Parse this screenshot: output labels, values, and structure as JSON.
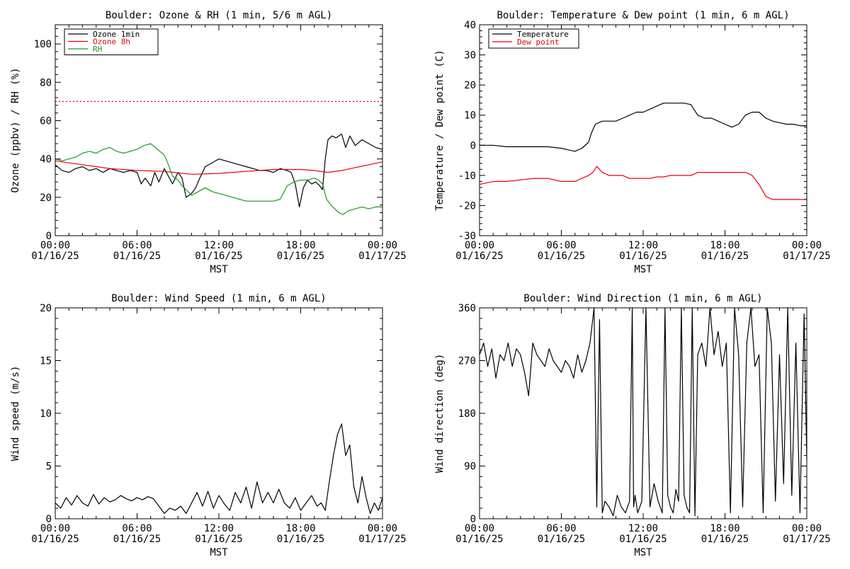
{
  "chart_data": [
    {
      "type": "line",
      "title": "Boulder: Ozone & RH (1 min, 5/6 m AGL)",
      "xlabel": "MST",
      "ylabel": "Ozone (ppbv) / RH (%)",
      "xlim": [
        0,
        24
      ],
      "ylim": [
        0,
        110
      ],
      "yticks": [
        "0",
        "20",
        "40",
        "60",
        "80",
        "100"
      ],
      "ytick_values": [
        0,
        20,
        40,
        60,
        80,
        100
      ],
      "xticks": [
        {
          "time": "00:00",
          "date": "01/16/25"
        },
        {
          "time": "06:00",
          "date": "01/16/25"
        },
        {
          "time": "12:00",
          "date": "01/16/25"
        },
        {
          "time": "18:00",
          "date": "01/16/25"
        },
        {
          "time": "00:00",
          "date": "01/17/25"
        }
      ],
      "xtick_values": [
        0,
        6,
        12,
        18,
        24
      ],
      "grid": false,
      "legend_position": "top-left",
      "reference_lines": [
        {
          "y": 70,
          "color": "#e8000b",
          "style": "dotted"
        }
      ],
      "series": [
        {
          "name": "Ozone 1min",
          "color": "#000000",
          "x": [
            0,
            0.5,
            1,
            1.5,
            2,
            2.5,
            3,
            3.5,
            4,
            4.5,
            5,
            5.5,
            6,
            6.3,
            6.6,
            7,
            7.3,
            7.6,
            8,
            8.3,
            8.6,
            9,
            9.3,
            9.6,
            10,
            10.3,
            10.6,
            11,
            11.5,
            12,
            12.5,
            13,
            13.5,
            14,
            14.5,
            15,
            15.5,
            16,
            16.5,
            17,
            17.3,
            17.6,
            17.9,
            18.2,
            18.5,
            18.8,
            19.1,
            19.4,
            19.6,
            19.8,
            20,
            20.3,
            20.6,
            21,
            21.3,
            21.6,
            22,
            22.5,
            23,
            23.5,
            24
          ],
          "values": [
            37,
            34,
            33,
            35,
            36,
            34,
            35,
            33,
            35,
            34,
            33,
            34,
            33,
            27,
            30,
            26,
            33,
            28,
            35,
            31,
            27,
            33,
            30,
            20,
            22,
            25,
            30,
            36,
            38,
            40,
            39,
            38,
            37,
            36,
            35,
            34,
            34,
            33,
            35,
            34,
            33,
            27,
            15,
            25,
            29,
            27,
            28,
            26,
            24,
            40,
            50,
            52,
            51,
            53,
            46,
            52,
            47,
            50,
            48,
            46,
            45
          ]
        },
        {
          "name": "Ozone 8h",
          "color": "#e8000b",
          "x": [
            0,
            2,
            4,
            6,
            8,
            10,
            12,
            14,
            16,
            18,
            19,
            20,
            21,
            22,
            23,
            24
          ],
          "values": [
            39,
            37,
            35,
            34,
            33.5,
            32,
            32.5,
            33.5,
            34.5,
            34.5,
            34,
            33,
            34,
            35.5,
            37,
            38.5
          ]
        },
        {
          "name": "RH",
          "color": "#1a9a1a",
          "x": [
            0,
            0.5,
            1,
            1.5,
            2,
            2.5,
            3,
            3.5,
            4,
            4.5,
            5,
            5.5,
            6,
            6.5,
            7,
            7.5,
            8,
            8.3,
            8.6,
            9,
            9.3,
            9.6,
            10,
            10.5,
            11,
            11.5,
            12,
            12.5,
            13,
            13.5,
            14,
            14.5,
            15,
            15.5,
            16,
            16.5,
            17,
            17.5,
            18,
            18.5,
            19,
            19.3,
            19.6,
            19.9,
            20.2,
            20.5,
            20.8,
            21.1,
            21.5,
            22,
            22.5,
            23,
            23.5,
            24
          ],
          "values": [
            40,
            39,
            40,
            41,
            43,
            44,
            43,
            45,
            46,
            44,
            43,
            44,
            45,
            47,
            48,
            45,
            42,
            37,
            31,
            29,
            26,
            24,
            21,
            23,
            25,
            23,
            22,
            21,
            20,
            19,
            18,
            18,
            18,
            18,
            18,
            19,
            26,
            28,
            29,
            29,
            30,
            29,
            27,
            19,
            16,
            14,
            12,
            11,
            13,
            14,
            15,
            14,
            15,
            15
          ]
        }
      ]
    },
    {
      "type": "line",
      "title": "Boulder: Temperature & Dew point (1 min, 6 m AGL)",
      "xlabel": "MST",
      "ylabel": "Temperature / Dew point (C)",
      "xlim": [
        0,
        24
      ],
      "ylim": [
        -30,
        40
      ],
      "yticks": [
        "-30",
        "-20",
        "-10",
        "0",
        "10",
        "20",
        "30",
        "40"
      ],
      "ytick_values": [
        -30,
        -20,
        -10,
        0,
        10,
        20,
        30,
        40
      ],
      "xticks": [
        {
          "time": "00:00",
          "date": "01/16/25"
        },
        {
          "time": "06:00",
          "date": "01/16/25"
        },
        {
          "time": "12:00",
          "date": "01/16/25"
        },
        {
          "time": "18:00",
          "date": "01/16/25"
        },
        {
          "time": "00:00",
          "date": "01/17/25"
        }
      ],
      "xtick_values": [
        0,
        6,
        12,
        18,
        24
      ],
      "grid": false,
      "legend_position": "top-left",
      "reference_lines": [],
      "series": [
        {
          "name": "Temperature",
          "color": "#000000",
          "x": [
            0,
            1,
            2,
            3,
            4,
            5,
            6,
            6.5,
            7,
            7.5,
            8,
            8.2,
            8.5,
            9,
            9.5,
            10,
            10.5,
            11,
            11.5,
            12,
            12.5,
            13,
            13.5,
            14,
            14.5,
            15,
            15.5,
            16,
            16.5,
            17,
            17.5,
            18,
            18.5,
            19,
            19.5,
            20,
            20.5,
            21,
            21.5,
            22,
            22.5,
            23,
            23.5,
            24
          ],
          "values": [
            0,
            0,
            -0.5,
            -0.5,
            -0.5,
            -0.5,
            -1,
            -1.5,
            -2,
            -1,
            1,
            4,
            7,
            8,
            8,
            8,
            9,
            10,
            11,
            11,
            12,
            13,
            14,
            14,
            14,
            14,
            13.5,
            10,
            9,
            9,
            8,
            7,
            6,
            7,
            10,
            11,
            11,
            9,
            8,
            7.5,
            7,
            7,
            6.5,
            6.5
          ]
        },
        {
          "name": "Dew point",
          "color": "#e8000b",
          "x": [
            0,
            1,
            2,
            3,
            4,
            5,
            6,
            6.5,
            7,
            7.5,
            8,
            8.3,
            8.6,
            9,
            9.5,
            10,
            10.5,
            11,
            11.5,
            12,
            12.5,
            13,
            13.5,
            14,
            14.5,
            15,
            15.5,
            16,
            16.5,
            17,
            17.5,
            18,
            18.5,
            19,
            19.5,
            20,
            20.5,
            21,
            21.5,
            22,
            22.5,
            23,
            23.5,
            24
          ],
          "values": [
            -13,
            -12,
            -12,
            -11.5,
            -11,
            -11,
            -12,
            -12,
            -12,
            -11,
            -10,
            -9,
            -7,
            -9,
            -10,
            -10,
            -10,
            -11,
            -11,
            -11,
            -11,
            -10.5,
            -10.5,
            -10,
            -10,
            -10,
            -10,
            -9,
            -9,
            -9,
            -9,
            -9,
            -9,
            -9,
            -9,
            -10,
            -13,
            -17,
            -18,
            -18,
            -18,
            -18,
            -18,
            -18
          ]
        }
      ]
    },
    {
      "type": "line",
      "title": "Boulder: Wind Speed (1 min, 6 m AGL)",
      "xlabel": "MST",
      "ylabel": "Wind speed (m/s)",
      "xlim": [
        0,
        24
      ],
      "ylim": [
        0,
        20
      ],
      "yticks": [
        "0",
        "5",
        "10",
        "15",
        "20"
      ],
      "ytick_values": [
        0,
        5,
        10,
        15,
        20
      ],
      "xticks": [
        {
          "time": "00:00",
          "date": "01/16/25"
        },
        {
          "time": "06:00",
          "date": "01/16/25"
        },
        {
          "time": "12:00",
          "date": "01/16/25"
        },
        {
          "time": "18:00",
          "date": "01/16/25"
        },
        {
          "time": "00:00",
          "date": "01/17/25"
        }
      ],
      "xtick_values": [
        0,
        6,
        12,
        18,
        24
      ],
      "grid": false,
      "legend_position": "none",
      "reference_lines": [],
      "series": [
        {
          "name": "",
          "color": "#000000",
          "x": [
            0,
            0.4,
            0.8,
            1.2,
            1.6,
            2,
            2.4,
            2.8,
            3.2,
            3.6,
            4,
            4.4,
            4.8,
            5.2,
            5.6,
            6,
            6.4,
            6.8,
            7.2,
            7.6,
            8,
            8.4,
            8.8,
            9.2,
            9.6,
            10,
            10.4,
            10.8,
            11.2,
            11.6,
            12,
            12.4,
            12.8,
            13.2,
            13.6,
            14,
            14.4,
            14.8,
            15.2,
            15.6,
            16,
            16.4,
            16.8,
            17.2,
            17.6,
            18,
            18.4,
            18.8,
            19.2,
            19.5,
            19.8,
            20.1,
            20.4,
            20.7,
            21,
            21.3,
            21.6,
            21.9,
            22.2,
            22.5,
            22.8,
            23.1,
            23.4,
            23.7,
            24
          ],
          "values": [
            1.5,
            1,
            2,
            1.3,
            2.2,
            1.5,
            1.2,
            2.3,
            1.4,
            2,
            1.6,
            1.8,
            2.2,
            1.9,
            1.7,
            2,
            1.8,
            2.1,
            1.9,
            1.2,
            0.5,
            1,
            0.8,
            1.2,
            0.5,
            1.5,
            2.5,
            1.2,
            2.6,
            1,
            2.2,
            1.4,
            0.8,
            2.5,
            1.5,
            3,
            1,
            3.5,
            1.5,
            2.5,
            1.5,
            2.8,
            1.5,
            1,
            2,
            0.8,
            1.5,
            2.2,
            1.2,
            1.5,
            0.8,
            3.5,
            6,
            8,
            9,
            6,
            7,
            3,
            1.5,
            4,
            2,
            0.5,
            1.5,
            0.8,
            2
          ]
        }
      ]
    },
    {
      "type": "line",
      "title": "Boulder: Wind Direction (1 min, 6 m AGL)",
      "xlabel": "MST",
      "ylabel": "Wind direction (deg)",
      "xlim": [
        0,
        24
      ],
      "ylim": [
        0,
        360
      ],
      "yticks": [
        "0",
        "90",
        "180",
        "270",
        "360"
      ],
      "ytick_values": [
        0,
        90,
        180,
        270,
        360
      ],
      "xticks": [
        {
          "time": "00:00",
          "date": "01/16/25"
        },
        {
          "time": "06:00",
          "date": "01/16/25"
        },
        {
          "time": "12:00",
          "date": "01/16/25"
        },
        {
          "time": "18:00",
          "date": "01/16/25"
        },
        {
          "time": "00:00",
          "date": "01/17/25"
        }
      ],
      "xtick_values": [
        0,
        6,
        12,
        18,
        24
      ],
      "grid": false,
      "legend_position": "none",
      "reference_lines": [],
      "series": [
        {
          "name": "",
          "color": "#000000",
          "x": [
            0,
            0.3,
            0.6,
            0.9,
            1.2,
            1.5,
            1.8,
            2.1,
            2.4,
            2.7,
            3,
            3.3,
            3.6,
            3.9,
            4.2,
            4.5,
            4.8,
            5.1,
            5.4,
            5.7,
            6,
            6.3,
            6.6,
            6.9,
            7.2,
            7.5,
            7.8,
            8.1,
            8.4,
            8.6,
            8.8,
            9,
            9.2,
            9.5,
            9.8,
            10.1,
            10.4,
            10.7,
            11,
            11.2,
            11.3,
            11.4,
            11.6,
            11.9,
            12.2,
            12.5,
            12.8,
            13.1,
            13.4,
            13.6,
            13.8,
            14,
            14.2,
            14.4,
            14.6,
            14.8,
            15,
            15.2,
            15.4,
            15.6,
            15.8,
            16,
            16.3,
            16.6,
            16.9,
            17.2,
            17.5,
            17.8,
            18.1,
            18.4,
            18.7,
            19,
            19.3,
            19.6,
            19.9,
            20.2,
            20.5,
            20.8,
            21.1,
            21.4,
            21.7,
            22,
            22.3,
            22.6,
            22.9,
            23.2,
            23.5,
            23.8,
            24
          ],
          "values": [
            280,
            300,
            260,
            290,
            240,
            280,
            270,
            300,
            260,
            290,
            280,
            250,
            210,
            300,
            280,
            270,
            260,
            290,
            270,
            260,
            250,
            270,
            260,
            240,
            280,
            250,
            270,
            300,
            360,
            20,
            340,
            10,
            30,
            20,
            5,
            40,
            20,
            10,
            30,
            360,
            20,
            40,
            10,
            30,
            360,
            20,
            60,
            30,
            10,
            360,
            40,
            20,
            10,
            50,
            30,
            360,
            40,
            20,
            10,
            360,
            5,
            280,
            300,
            260,
            360,
            280,
            320,
            260,
            300,
            10,
            360,
            280,
            20,
            300,
            360,
            260,
            280,
            10,
            360,
            300,
            30,
            280,
            60,
            360,
            40,
            300,
            10,
            350,
            100
          ]
        }
      ]
    }
  ]
}
